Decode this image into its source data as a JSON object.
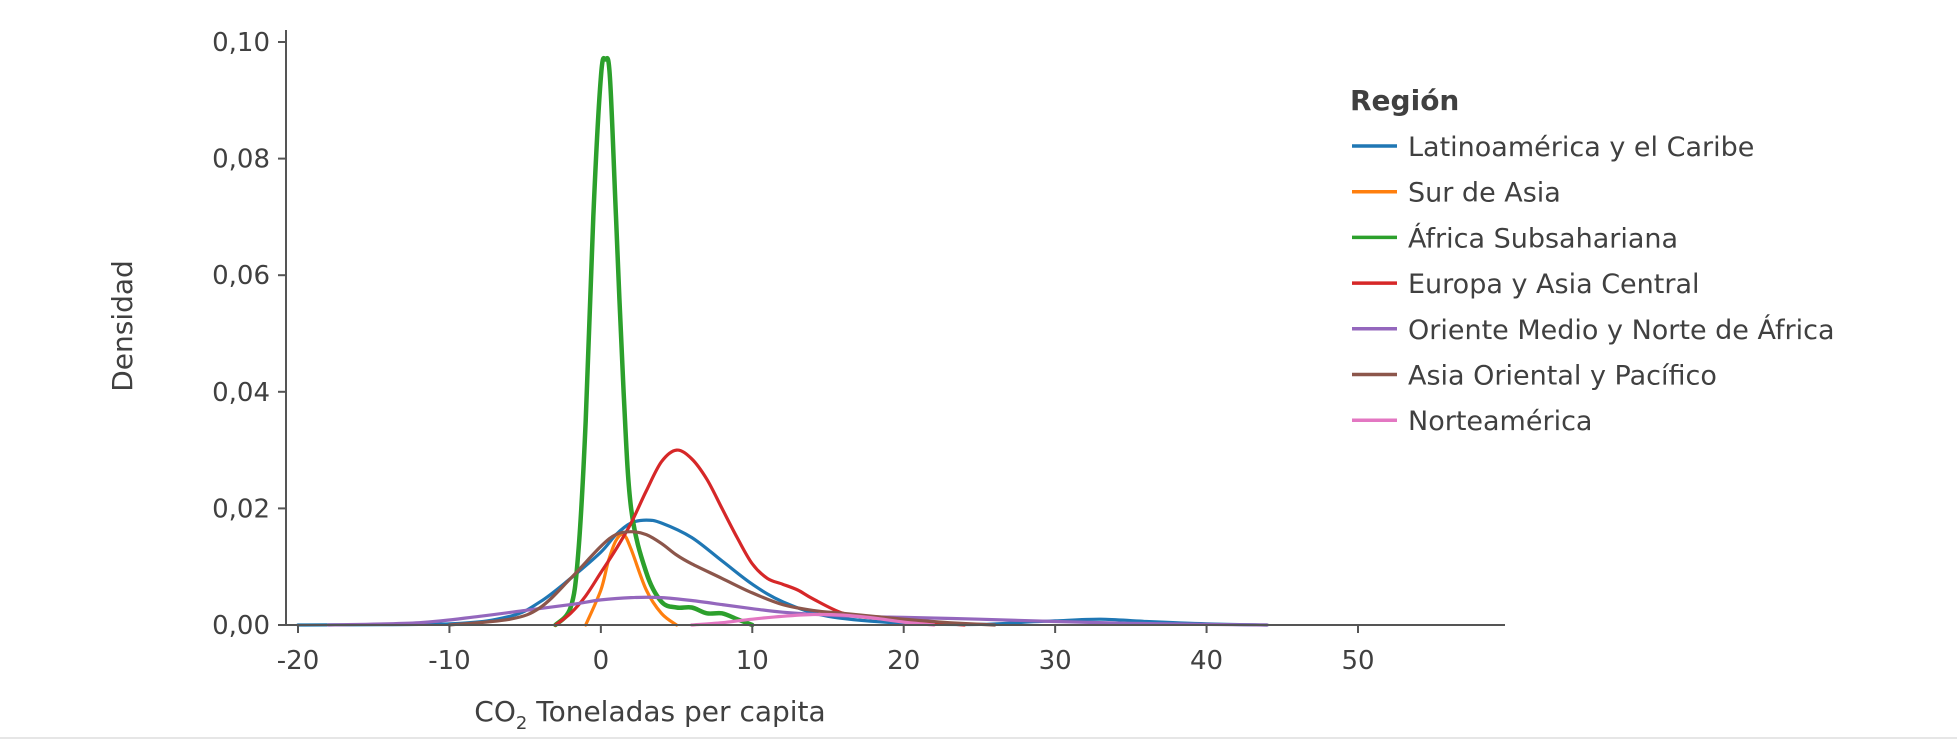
{
  "chart_data": {
    "type": "line",
    "xlabel": {
      "prefix": "CO",
      "subscript": "2",
      "suffix": " Toneladas per capita"
    },
    "ylabel": "Densidad",
    "xlim": [
      -21,
      59
    ],
    "ylim": [
      0,
      0.1
    ],
    "xticks": [
      -20,
      -10,
      0,
      10,
      20,
      30,
      40,
      50
    ],
    "xtick_labels": [
      "-20",
      "-10",
      "0",
      "10",
      "20",
      "30",
      "40",
      "50"
    ],
    "yticks": [
      0,
      0.02,
      0.04,
      0.06,
      0.08,
      0.1
    ],
    "ytick_labels": [
      "0,00",
      "0,02",
      "0,04",
      "0,06",
      "0,08",
      "0,10"
    ],
    "grid": false,
    "legend": {
      "title": "Región",
      "placement": "top-right"
    },
    "series": [
      {
        "name": "Latinoamérica y el Caribe",
        "color": "#1f77b4",
        "x": [
          -20,
          -10,
          -6,
          -4,
          -2,
          0,
          1,
          2,
          3,
          4,
          6,
          8,
          10,
          12,
          15,
          20,
          25,
          28,
          30,
          33,
          36,
          40,
          44
        ],
        "y": [
          0,
          0.0002,
          0.0015,
          0.004,
          0.008,
          0.0125,
          0.0155,
          0.0175,
          0.018,
          0.0175,
          0.015,
          0.011,
          0.007,
          0.004,
          0.0015,
          0.0003,
          0.0001,
          0.0005,
          0.0007,
          0.001,
          0.0006,
          0.0002,
          0
        ]
      },
      {
        "name": "Sur de Asia",
        "color": "#ff7f0e",
        "x": [
          -1,
          0,
          0.5,
          1,
          1.5,
          2,
          3,
          4,
          5
        ],
        "y": [
          0,
          0.006,
          0.011,
          0.0145,
          0.0155,
          0.013,
          0.006,
          0.002,
          0
        ]
      },
      {
        "name": "África Subsahariana",
        "color": "#2ca02c",
        "x": [
          -3,
          -2,
          -1.5,
          -1,
          -0.5,
          0,
          0.3,
          0.6,
          1,
          1.5,
          2,
          3,
          4,
          5,
          6,
          7,
          8,
          9,
          10
        ],
        "y": [
          0,
          0.003,
          0.012,
          0.035,
          0.07,
          0.094,
          0.097,
          0.094,
          0.07,
          0.04,
          0.02,
          0.009,
          0.004,
          0.003,
          0.003,
          0.002,
          0.002,
          0.001,
          0
        ],
        "width": 4.5
      },
      {
        "name": "Europa y Asia Central",
        "color": "#d62728",
        "x": [
          -3,
          -2,
          -1,
          0,
          1,
          2,
          3,
          4,
          5,
          6,
          7,
          8,
          9,
          10,
          11,
          12,
          13,
          14,
          16,
          18,
          20,
          22,
          24
        ],
        "y": [
          0,
          0.002,
          0.005,
          0.009,
          0.013,
          0.0175,
          0.023,
          0.028,
          0.03,
          0.0285,
          0.025,
          0.02,
          0.015,
          0.0105,
          0.008,
          0.007,
          0.006,
          0.0045,
          0.002,
          0.0012,
          0.0009,
          0.0004,
          0
        ]
      },
      {
        "name": "Oriente Medio y Norte de África",
        "color": "#9467bd",
        "x": [
          -18,
          -12,
          -8,
          -5,
          -2,
          0,
          2,
          4,
          6,
          8,
          10,
          12,
          15,
          18,
          20,
          25,
          30,
          35,
          40,
          44
        ],
        "y": [
          0,
          0.0004,
          0.0015,
          0.0025,
          0.0035,
          0.0043,
          0.0047,
          0.0047,
          0.0042,
          0.0035,
          0.0028,
          0.0022,
          0.0017,
          0.0014,
          0.0013,
          0.001,
          0.0006,
          0.0003,
          0.0001,
          0
        ]
      },
      {
        "name": "Asia Oriental y Pacífico",
        "color": "#8c564b",
        "x": [
          -10,
          -6,
          -4,
          -2,
          0,
          1,
          2,
          3,
          4,
          5,
          6,
          8,
          10,
          12,
          14,
          16,
          18,
          20,
          23,
          26
        ],
        "y": [
          0,
          0.001,
          0.003,
          0.008,
          0.0135,
          0.0155,
          0.016,
          0.0155,
          0.014,
          0.012,
          0.0105,
          0.008,
          0.0055,
          0.0035,
          0.0025,
          0.002,
          0.0015,
          0.001,
          0.0004,
          0
        ]
      },
      {
        "name": "Norteamérica",
        "color": "#e377c2",
        "x": [
          6,
          8,
          10,
          12,
          14,
          16,
          18,
          20,
          22
        ],
        "y": [
          0,
          0.0004,
          0.001,
          0.0015,
          0.0018,
          0.0017,
          0.0012,
          0.0005,
          0
        ]
      }
    ]
  }
}
